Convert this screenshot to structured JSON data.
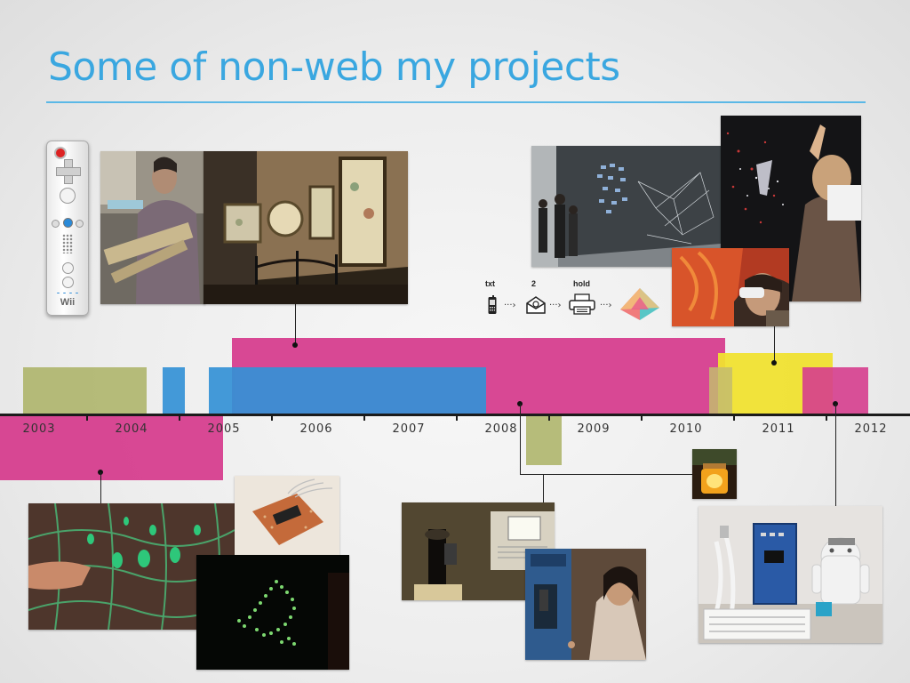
{
  "slide": {
    "title": "Some of non-web my projects"
  },
  "timeline": {
    "years": [
      "2003",
      "2004",
      "2005",
      "2006",
      "2007",
      "2008",
      "2009",
      "2010",
      "2011",
      "2012"
    ]
  },
  "colors": {
    "title": "#3aa7e0",
    "rule": "#5bb8e6",
    "pink": "#d63e8e",
    "blue": "#3491d6",
    "olive": "#aab264",
    "yellow": "#f0e230",
    "axis": "#1b1b1b"
  },
  "wii_remote": {
    "brand": "Wii"
  },
  "sms_flow": {
    "step1": "txt",
    "step2": "2",
    "step3": "hold",
    "icons": [
      "phone-icon",
      "mail-icon",
      "printer-icon",
      "prism-icon"
    ]
  }
}
